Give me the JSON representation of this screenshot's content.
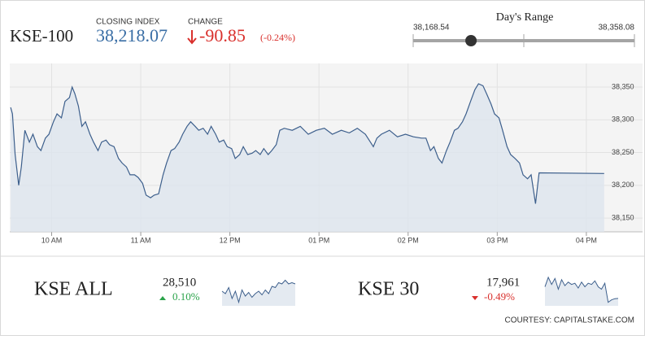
{
  "header": {
    "symbol": "KSE-100",
    "closing_label": "CLOSING INDEX",
    "closing": {
      "value": 38218.07,
      "label": "38,218.07"
    },
    "change_label": "CHANGE",
    "change_value": "-90.85",
    "change_pct": "(-0.24%)"
  },
  "day_range": {
    "title": "Day's Range",
    "low": {
      "value": 38168.54,
      "label": "38,168.54"
    },
    "high": {
      "value": 38358.08,
      "label": "38,358.08"
    }
  },
  "chart_data": [
    {
      "type": "line",
      "color": "#3d5f8c",
      "fill": "#dde5ee",
      "grid": true,
      "xlim": [
        9.53,
        16.22
      ],
      "ylim": [
        38129,
        38386
      ],
      "xticks": [
        {
          "value": 10,
          "label": "10 AM"
        },
        {
          "value": 11,
          "label": "11 AM"
        },
        {
          "value": 12,
          "label": "12 PM"
        },
        {
          "value": 13,
          "label": "01 PM"
        },
        {
          "value": 14,
          "label": "02 PM"
        },
        {
          "value": 15,
          "label": "03 PM"
        },
        {
          "value": 16,
          "label": "04 PM"
        }
      ],
      "yticks": [
        {
          "value": 38150,
          "label": "38,150"
        },
        {
          "value": 38200,
          "label": "38,200"
        },
        {
          "value": 38250,
          "label": "38,250"
        },
        {
          "value": 38300,
          "label": "38,300"
        },
        {
          "value": 38350,
          "label": "38,350"
        }
      ],
      "x": [
        9.54,
        9.56,
        9.59,
        9.63,
        9.66,
        9.7,
        9.75,
        9.79,
        9.84,
        9.88,
        9.93,
        9.97,
        10.02,
        10.06,
        10.11,
        10.15,
        10.2,
        10.23,
        10.26,
        10.3,
        10.34,
        10.38,
        10.43,
        10.47,
        10.52,
        10.56,
        10.61,
        10.65,
        10.7,
        10.75,
        10.79,
        10.84,
        10.88,
        10.93,
        10.97,
        11.02,
        11.06,
        11.11,
        11.15,
        11.2,
        11.25,
        11.29,
        11.34,
        11.38,
        11.43,
        11.47,
        11.52,
        11.56,
        11.61,
        11.65,
        11.7,
        11.75,
        11.79,
        11.84,
        11.88,
        11.93,
        11.97,
        12.02,
        12.06,
        12.11,
        12.15,
        12.2,
        12.25,
        12.29,
        12.34,
        12.38,
        12.43,
        12.47,
        12.52,
        12.56,
        12.61,
        12.7,
        12.79,
        12.88,
        12.97,
        13.06,
        13.15,
        13.25,
        13.34,
        13.43,
        13.52,
        13.61,
        13.65,
        13.7,
        13.79,
        13.88,
        13.97,
        14.06,
        14.15,
        14.2,
        14.25,
        14.29,
        14.34,
        14.38,
        14.43,
        14.47,
        14.52,
        14.56,
        14.61,
        14.65,
        14.7,
        14.75,
        14.79,
        14.84,
        14.88,
        14.93,
        14.97,
        15.02,
        15.06,
        15.11,
        15.15,
        15.2,
        15.25,
        15.29,
        15.34,
        15.38,
        15.43,
        15.47,
        16.2
      ],
      "values": [
        38319,
        38309,
        38247,
        38200,
        38228,
        38284,
        38266,
        38278,
        38259,
        38253,
        38272,
        38278,
        38297,
        38309,
        38303,
        38328,
        38334,
        38350,
        38340,
        38321,
        38290,
        38297,
        38278,
        38266,
        38253,
        38266,
        38269,
        38262,
        38259,
        38241,
        38234,
        38228,
        38216,
        38216,
        38212,
        38203,
        38185,
        38181,
        38185,
        38187,
        38216,
        38234,
        38253,
        38256,
        38266,
        38278,
        38290,
        38297,
        38290,
        38284,
        38287,
        38278,
        38290,
        38278,
        38266,
        38269,
        38259,
        38256,
        38241,
        38247,
        38259,
        38247,
        38249,
        38253,
        38247,
        38256,
        38247,
        38253,
        38262,
        38284,
        38287,
        38284,
        38290,
        38278,
        38284,
        38287,
        38278,
        38284,
        38280,
        38287,
        38278,
        38259,
        38272,
        38278,
        38284,
        38274,
        38278,
        38274,
        38272,
        38272,
        38253,
        38259,
        38241,
        38234,
        38253,
        38266,
        38284,
        38287,
        38297,
        38309,
        38328,
        38346,
        38355,
        38352,
        38340,
        38324,
        38309,
        38303,
        38284,
        38259,
        38247,
        38241,
        38234,
        38216,
        38210,
        38216,
        38172,
        38219,
        38218
      ]
    },
    {
      "type": "sparkline",
      "color": "#3d5f8c",
      "fill": "#dde5ee",
      "ylim": [
        28440,
        28560
      ],
      "values": [
        28500,
        28490,
        28515,
        28470,
        28500,
        28455,
        28505,
        28480,
        28495,
        28475,
        28490,
        28500,
        28485,
        28505,
        28490,
        28520,
        28515,
        28535,
        28530,
        28545,
        28530,
        28535,
        28530
      ]
    },
    {
      "type": "sparkline",
      "color": "#3d5f8c",
      "fill": "#dde5ee",
      "ylim": [
        17930,
        18060
      ],
      "values": [
        18010,
        18050,
        18020,
        18045,
        18000,
        18040,
        18015,
        18030,
        18020,
        18025,
        18005,
        18030,
        18010,
        18025,
        18020,
        18035,
        18010,
        18000,
        18025,
        17945,
        17955,
        17960,
        17961
      ]
    }
  ],
  "cards": [
    {
      "name": "KSE ALL",
      "value": "28,510",
      "change": "0.10%"
    },
    {
      "name": "KSE 30",
      "value": "17,961",
      "change": "-0.49%"
    }
  ],
  "footer": "COURTESY: CAPITALSTAKE.COM"
}
